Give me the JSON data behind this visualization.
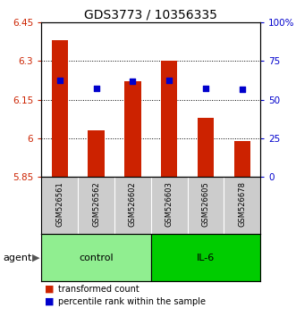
{
  "title": "GDS3773 / 10356335",
  "samples": [
    "GSM526561",
    "GSM526562",
    "GSM526602",
    "GSM526603",
    "GSM526605",
    "GSM526678"
  ],
  "groups": [
    "control",
    "control",
    "control",
    "IL-6",
    "IL-6",
    "IL-6"
  ],
  "group_colors": [
    "#90EE90",
    "#00CC00"
  ],
  "bar_values": [
    6.38,
    6.03,
    6.22,
    6.3,
    6.08,
    5.99
  ],
  "percentile_values": [
    6.225,
    6.195,
    6.22,
    6.225,
    6.195,
    6.19
  ],
  "y_min": 5.85,
  "y_max": 6.45,
  "y_ticks": [
    5.85,
    6.0,
    6.15,
    6.3,
    6.45
  ],
  "y_tick_labels": [
    "5.85",
    "6",
    "6.15",
    "6.3",
    "6.45"
  ],
  "y2_ticks": [
    0,
    25,
    50,
    75,
    100
  ],
  "y2_tick_labels": [
    "0",
    "25",
    "50",
    "75",
    "100%"
  ],
  "bar_color": "#CC2200",
  "bar_bottom": 5.85,
  "percentile_color": "#0000CC",
  "agent_label": "agent",
  "legend_bar_label": "transformed count",
  "legend_pct_label": "percentile rank within the sample",
  "sample_bg_color": "#CCCCCC",
  "grid_yticks": [
    6.0,
    6.15,
    6.3
  ],
  "title_fontsize": 10,
  "tick_fontsize": 7.5,
  "sample_fontsize": 6,
  "group_fontsize": 8,
  "legend_fontsize": 7
}
